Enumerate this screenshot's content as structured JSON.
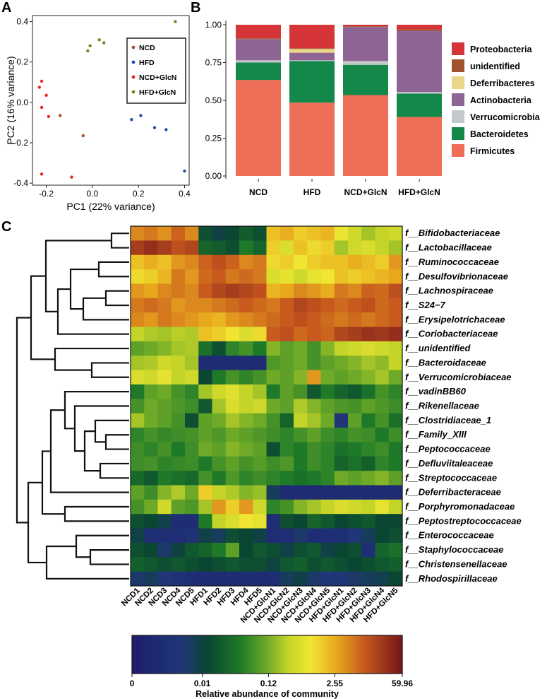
{
  "panels": {
    "a": "A",
    "b": "B",
    "c": "C"
  },
  "chart_data": [
    {
      "type": "scatter",
      "panel": "A",
      "xlabel": "PC1 (22% variance)",
      "ylabel": "PC2 (16% variance)",
      "xlim": [
        -0.26,
        0.42
      ],
      "ylim": [
        -0.41,
        0.43
      ],
      "xticks": [
        "-0.2",
        "0.0",
        "0.2",
        "0.4"
      ],
      "xtick_values": [
        -0.2,
        0.0,
        0.2,
        0.4
      ],
      "yticks": [
        "-0.4",
        "-0.2",
        "0.0",
        "0.2",
        "0.4"
      ],
      "ytick_values": [
        -0.4,
        -0.2,
        0.0,
        0.2,
        0.4
      ],
      "legend_position": "top-right",
      "series": [
        {
          "name": "NCD",
          "color": "#a0522d",
          "points": [
            [
              -0.04,
              -0.165
            ],
            [
              -0.14,
              -0.065
            ]
          ]
        },
        {
          "name": "HFD",
          "color": "#1f4fa8",
          "points": [
            [
              0.17,
              -0.085
            ],
            [
              0.21,
              -0.065
            ],
            [
              0.27,
              -0.125
            ],
            [
              0.32,
              -0.135
            ],
            [
              0.4,
              -0.34
            ]
          ]
        },
        {
          "name": "NCD+GlcN",
          "color": "#e8261e",
          "points": [
            [
              -0.23,
              0.075
            ],
            [
              -0.22,
              0.105
            ],
            [
              -0.2,
              0.035
            ],
            [
              -0.22,
              -0.025
            ],
            [
              -0.19,
              -0.07
            ],
            [
              -0.22,
              -0.355
            ],
            [
              -0.09,
              -0.37
            ]
          ]
        },
        {
          "name": "HFD+GlcN",
          "color": "#6b8e23",
          "points": [
            [
              -0.01,
              0.28
            ],
            [
              -0.02,
              0.255
            ],
            [
              0.03,
              0.31
            ],
            [
              0.05,
              0.295
            ],
            [
              0.36,
              0.4
            ]
          ]
        }
      ]
    },
    {
      "type": "bar",
      "stacked": true,
      "panel": "B",
      "categories": [
        "NCD",
        "HFD",
        "NCD+GlcN",
        "HFD+GlcN"
      ],
      "ylim": [
        0,
        1.0
      ],
      "yticks": [
        "0.00",
        "0.25",
        "0.50",
        "0.75",
        "1.00"
      ],
      "ytick_values": [
        0,
        0.25,
        0.5,
        0.75,
        1.0
      ],
      "legend_position": "right",
      "series": [
        {
          "name": "Firmicutes",
          "color": "#ee6e58",
          "values": [
            0.635,
            0.485,
            0.535,
            0.39
          ]
        },
        {
          "name": "Bacteroidetes",
          "color": "#14874a",
          "values": [
            0.115,
            0.275,
            0.2,
            0.155
          ]
        },
        {
          "name": "Verrucomicrobia",
          "color": "#c3c8ca",
          "values": [
            0.015,
            0.005,
            0.025,
            0.01
          ]
        },
        {
          "name": "Actinobacteria",
          "color": "#8e6495",
          "values": [
            0.14,
            0.05,
            0.225,
            0.405
          ]
        },
        {
          "name": "Deferribacteres",
          "color": "#ead688",
          "values": [
            0.0,
            0.025,
            0.0,
            0.0
          ]
        },
        {
          "name": "unidentified",
          "color": "#a2522e",
          "values": [
            0.005,
            0.005,
            0.005,
            0.01
          ]
        },
        {
          "name": "Proteobacteria",
          "color": "#d53538",
          "values": [
            0.09,
            0.155,
            0.01,
            0.03
          ]
        }
      ]
    },
    {
      "type": "heatmap",
      "panel": "C",
      "columns": [
        "NCD1",
        "NCD2",
        "NCD3",
        "NCD4",
        "NCD5",
        "HFD1",
        "HFD2",
        "HFD3",
        "HFD4",
        "HFD5",
        "NCD+GlcN1",
        "NCD+GlcN2",
        "NCD+GlcN3",
        "NCD+GlcN4",
        "NCD+GlcN5",
        "HFD+GlcN1",
        "HFD+GlcN2",
        "HFD+GlcN3",
        "HFD+GlcN4",
        "HFD+GlcN5"
      ],
      "rows": [
        "f__Bifidobacteriaceae",
        "f__Lactobacillaceae",
        "f__Ruminococcaceae",
        "f__Desulfovibrionaceae",
        "f__Lachnospiraceae",
        "f__S24−7",
        "f__Erysipelotrichaceae",
        "f__Coriobacteriaceae",
        "f__unidentified",
        "f__Bacteroidaceae",
        "f__Verrucomicrobiaceae",
        "f__vadinBB60",
        "f__Rikenellaceae",
        "f__Clostridiaceae_1",
        "f__Family_XIII",
        "f__Peptococcaceae",
        "f__Defluviitaleaceae",
        "f__Streptococcaceae",
        "f__Deferribacteraceae",
        "f__Porphyromonadaceae",
        "f__Peptostreptococcaceae",
        "f__Enterococcaceae",
        "f__Staphylococcaceae",
        "f__Christensenellaceae",
        "f__Rhodospirillaceae"
      ],
      "value_scale": "0 = lowest abundance, 1 = highest abundance (color scale position)",
      "values": [
        [
          0.8,
          0.82,
          0.79,
          0.85,
          0.8,
          0.3,
          0.25,
          0.28,
          0.33,
          0.3,
          0.72,
          0.75,
          0.7,
          0.72,
          0.74,
          0.65,
          0.6,
          0.55,
          0.58,
          0.6
        ],
        [
          0.92,
          0.95,
          0.92,
          0.88,
          0.9,
          0.35,
          0.33,
          0.3,
          0.4,
          0.35,
          0.7,
          0.62,
          0.72,
          0.68,
          0.7,
          0.55,
          0.6,
          0.62,
          0.58,
          0.55
        ],
        [
          0.72,
          0.75,
          0.72,
          0.78,
          0.8,
          0.85,
          0.88,
          0.85,
          0.8,
          0.82,
          0.68,
          0.7,
          0.66,
          0.7,
          0.72,
          0.72,
          0.75,
          0.73,
          0.7,
          0.78
        ],
        [
          0.68,
          0.7,
          0.74,
          0.82,
          0.78,
          0.84,
          0.86,
          0.82,
          0.84,
          0.82,
          0.62,
          0.64,
          0.6,
          0.64,
          0.66,
          0.72,
          0.7,
          0.72,
          0.74,
          0.76
        ],
        [
          0.78,
          0.76,
          0.8,
          0.82,
          0.8,
          0.86,
          0.9,
          0.92,
          0.9,
          0.88,
          0.74,
          0.76,
          0.8,
          0.78,
          0.75,
          0.82,
          0.8,
          0.85,
          0.84,
          0.88
        ],
        [
          0.82,
          0.84,
          0.82,
          0.78,
          0.8,
          0.8,
          0.82,
          0.84,
          0.86,
          0.84,
          0.82,
          0.86,
          0.9,
          0.88,
          0.86,
          0.84,
          0.86,
          0.88,
          0.84,
          0.86
        ],
        [
          0.8,
          0.78,
          0.82,
          0.8,
          0.78,
          0.76,
          0.74,
          0.78,
          0.8,
          0.82,
          0.84,
          0.86,
          0.88,
          0.86,
          0.84,
          0.82,
          0.84,
          0.82,
          0.84,
          0.86
        ],
        [
          0.58,
          0.56,
          0.55,
          0.57,
          0.56,
          0.72,
          0.7,
          0.66,
          0.62,
          0.68,
          0.86,
          0.88,
          0.84,
          0.86,
          0.85,
          0.9,
          0.92,
          0.94,
          0.93,
          0.95
        ],
        [
          0.48,
          0.5,
          0.52,
          0.55,
          0.56,
          0.38,
          0.3,
          0.42,
          0.45,
          0.4,
          0.52,
          0.48,
          0.5,
          0.45,
          0.52,
          0.58,
          0.6,
          0.62,
          0.6,
          0.58
        ],
        [
          0.55,
          0.56,
          0.6,
          0.58,
          0.55,
          0.1,
          0.1,
          0.1,
          0.1,
          0.1,
          0.46,
          0.48,
          0.5,
          0.45,
          0.48,
          0.5,
          0.52,
          0.55,
          0.53,
          0.58
        ],
        [
          0.62,
          0.6,
          0.64,
          0.58,
          0.6,
          0.28,
          0.4,
          0.45,
          0.42,
          0.45,
          0.5,
          0.48,
          0.52,
          0.78,
          0.5,
          0.48,
          0.5,
          0.52,
          0.55,
          0.5
        ],
        [
          0.4,
          0.48,
          0.5,
          0.45,
          0.42,
          0.55,
          0.6,
          0.63,
          0.58,
          0.55,
          0.4,
          0.48,
          0.45,
          0.32,
          0.4,
          0.35,
          0.32,
          0.38,
          0.45,
          0.42
        ],
        [
          0.45,
          0.5,
          0.48,
          0.46,
          0.44,
          0.32,
          0.55,
          0.62,
          0.58,
          0.6,
          0.5,
          0.48,
          0.56,
          0.52,
          0.48,
          0.46,
          0.45,
          0.48,
          0.46,
          0.44
        ],
        [
          0.55,
          0.5,
          0.48,
          0.45,
          0.3,
          0.48,
          0.5,
          0.55,
          0.52,
          0.5,
          0.45,
          0.35,
          0.58,
          0.55,
          0.5,
          0.18,
          0.48,
          0.4,
          0.45,
          0.38
        ],
        [
          0.42,
          0.45,
          0.43,
          0.44,
          0.45,
          0.48,
          0.46,
          0.5,
          0.48,
          0.46,
          0.44,
          0.42,
          0.45,
          0.48,
          0.44,
          0.42,
          0.45,
          0.44,
          0.4,
          0.44
        ],
        [
          0.44,
          0.42,
          0.45,
          0.4,
          0.44,
          0.5,
          0.48,
          0.52,
          0.5,
          0.48,
          0.3,
          0.42,
          0.4,
          0.44,
          0.42,
          0.38,
          0.4,
          0.42,
          0.44,
          0.4
        ],
        [
          0.44,
          0.45,
          0.42,
          0.43,
          0.44,
          0.4,
          0.45,
          0.48,
          0.45,
          0.47,
          0.44,
          0.46,
          0.4,
          0.44,
          0.42,
          0.35,
          0.38,
          0.34,
          0.42,
          0.4
        ],
        [
          0.36,
          0.32,
          0.4,
          0.38,
          0.36,
          0.45,
          0.4,
          0.46,
          0.42,
          0.44,
          0.42,
          0.4,
          0.38,
          0.4,
          0.42,
          0.5,
          0.48,
          0.5,
          0.52,
          0.48
        ],
        [
          0.48,
          0.44,
          0.52,
          0.56,
          0.5,
          0.7,
          0.58,
          0.56,
          0.52,
          0.54,
          0.22,
          0.1,
          0.1,
          0.1,
          0.1,
          0.1,
          0.1,
          0.1,
          0.1,
          0.1
        ],
        [
          0.45,
          0.5,
          0.6,
          0.48,
          0.46,
          0.55,
          0.78,
          0.7,
          0.78,
          0.6,
          0.42,
          0.45,
          0.52,
          0.55,
          0.58,
          0.62,
          0.6,
          0.58,
          0.64,
          0.58
        ],
        [
          0.3,
          0.28,
          0.24,
          0.12,
          0.12,
          0.4,
          0.58,
          0.62,
          0.66,
          0.64,
          0.12,
          0.3,
          0.28,
          0.35,
          0.32,
          0.28,
          0.3,
          0.32,
          0.28,
          0.28
        ],
        [
          0.25,
          0.12,
          0.12,
          0.12,
          0.15,
          0.25,
          0.22,
          0.3,
          0.28,
          0.25,
          0.12,
          0.12,
          0.2,
          0.12,
          0.12,
          0.12,
          0.18,
          0.22,
          0.28,
          0.3
        ],
        [
          0.3,
          0.28,
          0.2,
          0.26,
          0.32,
          0.35,
          0.4,
          0.48,
          0.28,
          0.32,
          0.3,
          0.25,
          0.3,
          0.32,
          0.25,
          0.28,
          0.3,
          0.12,
          0.35,
          0.38
        ],
        [
          0.34,
          0.32,
          0.3,
          0.32,
          0.3,
          0.28,
          0.3,
          0.32,
          0.3,
          0.3,
          0.26,
          0.32,
          0.34,
          0.3,
          0.32,
          0.3,
          0.28,
          0.3,
          0.32,
          0.34
        ],
        [
          0.2,
          0.22,
          0.18,
          0.15,
          0.12,
          0.12,
          0.1,
          0.12,
          0.12,
          0.1,
          0.12,
          0.22,
          0.25,
          0.2,
          0.18,
          0.18,
          0.2,
          0.22,
          0.24,
          0.28
        ]
      ],
      "colorbar": {
        "ticks": [
          "0",
          "0.01",
          "0.12",
          "2.55",
          "59.96"
        ],
        "label": "Relative abundance of community"
      }
    }
  ]
}
